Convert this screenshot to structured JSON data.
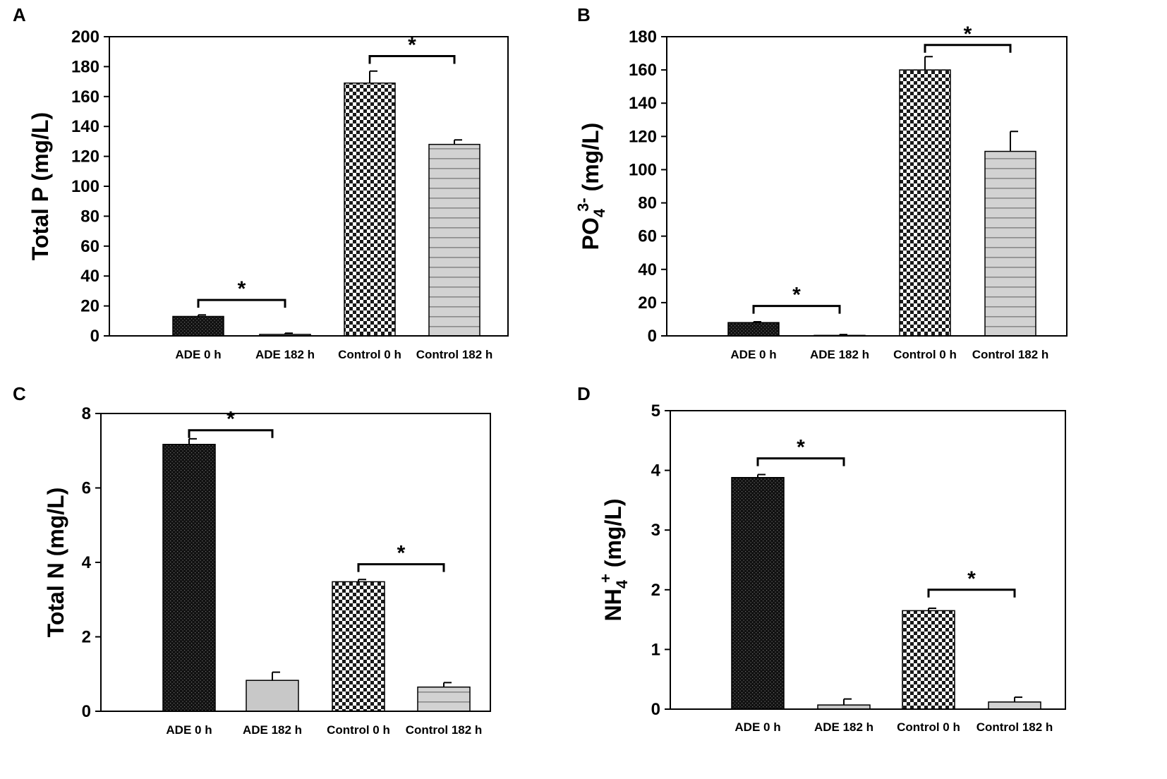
{
  "figure": {
    "panel_labels": [
      "A",
      "B",
      "C",
      "D"
    ]
  },
  "chart_data": [
    {
      "panel": "A",
      "type": "bar",
      "title": "",
      "xlabel": "",
      "ylabel": "Total P (mg/L)",
      "ylabel_parts": [
        {
          "text": "Total P (mg/L)",
          "shift": "none"
        }
      ],
      "categories": [
        "ADE 0 h",
        "ADE 182 h",
        "Control 0 h",
        "Control 182 h"
      ],
      "values": [
        13,
        1,
        169,
        128
      ],
      "errors": [
        1,
        0.8,
        8,
        3
      ],
      "patterns": [
        "dark-dots",
        "plain-gray",
        "checker",
        "stripes"
      ],
      "ylim": [
        0,
        200
      ],
      "yticks": [
        0,
        20,
        40,
        60,
        80,
        100,
        120,
        140,
        160,
        180,
        200
      ],
      "significance": [
        {
          "from": 0,
          "to": 1,
          "y": 24,
          "label": "*"
        },
        {
          "from": 2,
          "to": 3,
          "y": 187,
          "label": "*"
        }
      ],
      "grid": false
    },
    {
      "panel": "B",
      "type": "bar",
      "title": "",
      "xlabel": "",
      "ylabel": "PO43- (mg/L)",
      "ylabel_parts": [
        {
          "text": "PO",
          "shift": "none"
        },
        {
          "text": "4",
          "shift": "sub"
        },
        {
          "text": "3-",
          "shift": "super"
        },
        {
          "text": " (mg/L)",
          "shift": "none"
        }
      ],
      "categories": [
        "ADE 0 h",
        "ADE 182 h",
        "Control 0 h",
        "Control 182 h"
      ],
      "values": [
        8,
        0.3,
        160,
        111
      ],
      "errors": [
        0.5,
        0.5,
        8,
        12
      ],
      "patterns": [
        "dark-dots",
        "plain-gray",
        "checker",
        "stripes"
      ],
      "ylim": [
        0,
        180
      ],
      "yticks": [
        0,
        20,
        40,
        60,
        80,
        100,
        120,
        140,
        160,
        180
      ],
      "significance": [
        {
          "from": 0,
          "to": 1,
          "y": 18,
          "label": "*"
        },
        {
          "from": 2,
          "to": 3,
          "y": 175,
          "label": "*"
        }
      ],
      "grid": false
    },
    {
      "panel": "C",
      "type": "bar",
      "title": "",
      "xlabel": "",
      "ylabel": "Total N (mg/L)",
      "ylabel_parts": [
        {
          "text": "Total N (mg/L)",
          "shift": "none"
        }
      ],
      "categories": [
        "ADE 0 h",
        "ADE 182 h",
        "Control 0 h",
        "Control 182 h"
      ],
      "values": [
        7.17,
        0.83,
        3.48,
        0.65
      ],
      "errors": [
        0.15,
        0.22,
        0.06,
        0.12
      ],
      "patterns": [
        "dark-dots",
        "plain-gray",
        "checker",
        "stripes"
      ],
      "ylim": [
        0,
        8
      ],
      "yticks": [
        0,
        2,
        4,
        6,
        8
      ],
      "significance": [
        {
          "from": 0,
          "to": 1,
          "y": 7.55,
          "label": "*"
        },
        {
          "from": 2,
          "to": 3,
          "y": 3.95,
          "label": "*"
        }
      ],
      "grid": false
    },
    {
      "panel": "D",
      "type": "bar",
      "title": "",
      "xlabel": "",
      "ylabel": "NH4+ (mg/L)",
      "ylabel_parts": [
        {
          "text": "NH",
          "shift": "none"
        },
        {
          "text": "4",
          "shift": "sub"
        },
        {
          "text": "+",
          "shift": "super"
        },
        {
          "text": " (mg/L)",
          "shift": "none"
        }
      ],
      "categories": [
        "ADE 0 h",
        "ADE 182 h",
        "Control 0 h",
        "Control 182 h"
      ],
      "values": [
        3.88,
        0.07,
        1.65,
        0.12
      ],
      "errors": [
        0.05,
        0.1,
        0.04,
        0.08
      ],
      "patterns": [
        "dark-dots",
        "plain-gray",
        "checker",
        "stripes"
      ],
      "ylim": [
        0,
        5
      ],
      "yticks": [
        0,
        1,
        2,
        3,
        4,
        5
      ],
      "significance": [
        {
          "from": 0,
          "to": 1,
          "y": 4.2,
          "label": "*"
        },
        {
          "from": 2,
          "to": 3,
          "y": 2.0,
          "label": "*"
        }
      ],
      "grid": false
    }
  ],
  "colors": {
    "ink": "#000000",
    "gray_fill": "#c8c8c8",
    "stripe_fill": "#d2d2d2",
    "stripe_line": "#8a8a8a",
    "dark_fill": "#111111",
    "dot_color": "#6f6f6f",
    "background": "#ffffff"
  }
}
